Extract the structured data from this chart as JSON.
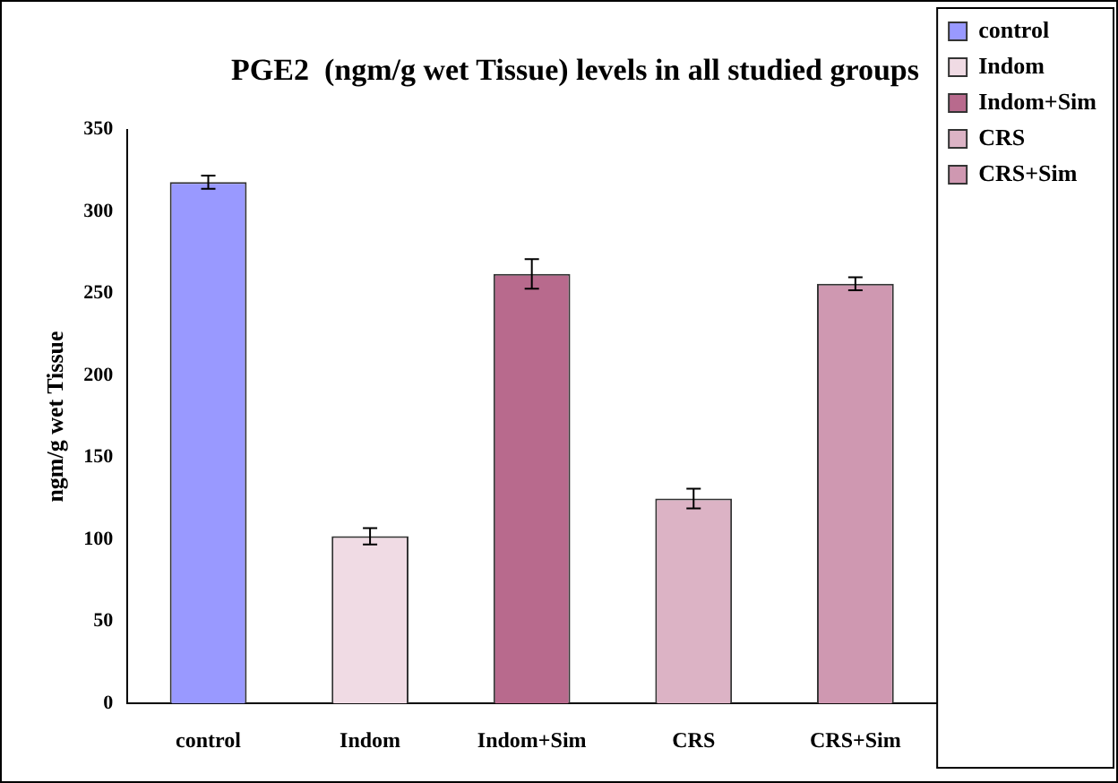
{
  "chart_data": {
    "type": "bar",
    "title": "PGE2  (ngm/g wet Tissue) levels in all studied groups",
    "ylabel": "ngm/g wet Tissue",
    "categories": [
      "control",
      "Indom",
      "Indom+Sim",
      "CRS",
      "CRS+Sim"
    ],
    "series": [
      {
        "name": "control",
        "color": "#9999ff",
        "values": [
          318,
          null,
          null,
          null,
          null
        ],
        "errors": [
          4,
          null,
          null,
          null,
          null
        ]
      },
      {
        "name": "Indom",
        "color": "#f0dbe4",
        "values": [
          null,
          102,
          null,
          null,
          null
        ],
        "errors": [
          null,
          5,
          null,
          null,
          null
        ]
      },
      {
        "name": "Indom+Sim",
        "color": "#b86a8d",
        "values": [
          null,
          null,
          262,
          null,
          null
        ],
        "errors": [
          null,
          null,
          9,
          null,
          null
        ]
      },
      {
        "name": "CRS",
        "color": "#dcb3c5",
        "values": [
          null,
          null,
          null,
          125,
          null
        ],
        "errors": [
          null,
          null,
          null,
          6,
          null
        ]
      },
      {
        "name": "CRS+Sim",
        "color": "#cf98b1",
        "values": [
          null,
          null,
          null,
          null,
          256
        ],
        "errors": [
          null,
          null,
          null,
          null,
          4
        ]
      }
    ],
    "ylim": [
      0,
      350
    ],
    "yticks": [
      0,
      50,
      100,
      150,
      200,
      250,
      300,
      350
    ],
    "grid": false,
    "legend": "right"
  }
}
